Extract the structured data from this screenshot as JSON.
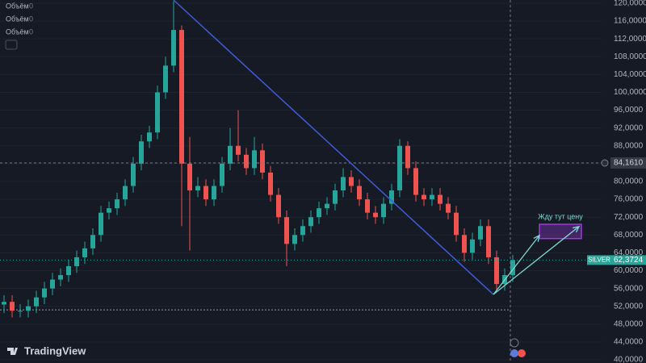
{
  "chart_data": {
    "type": "candlestick",
    "symbol": "SILVER",
    "up_color": "#26a69a",
    "down_color": "#ef5350",
    "open": [
      52.4,
      53,
      51,
      51,
      52,
      54,
      56,
      58,
      59,
      61,
      63,
      65,
      68,
      73,
      74,
      76,
      79,
      84,
      89,
      91,
      100,
      106,
      114,
      84,
      78,
      79,
      76,
      79,
      84,
      88,
      86,
      83,
      87,
      82,
      77,
      72,
      66,
      68,
      70,
      72,
      74,
      75,
      78,
      81,
      79,
      76,
      73,
      72,
      75,
      78,
      88,
      83,
      77,
      76,
      77,
      75,
      73,
      68,
      64,
      67,
      70,
      63,
      57,
      59
    ],
    "high": [
      54.5,
      54.5,
      52.5,
      53.5,
      55.5,
      57.5,
      59.5,
      60.5,
      62.5,
      64.5,
      66.5,
      69.5,
      74.5,
      75.5,
      77.5,
      80.5,
      85.5,
      90.5,
      92.5,
      101.5,
      108,
      120.5,
      115,
      90,
      81,
      80.5,
      80.5,
      85.5,
      92,
      96,
      87.5,
      90,
      88.5,
      83.5,
      78.5,
      73.5,
      69.5,
      71.5,
      73.5,
      75.5,
      76.5,
      79.5,
      83,
      82.5,
      80.5,
      77.5,
      74.5,
      76.5,
      79.5,
      89.5,
      89,
      84.5,
      78.5,
      78.5,
      78.5,
      76.5,
      74.5,
      69.5,
      68.5,
      71.5,
      71.5,
      64.5,
      60.5,
      63.5
    ],
    "low": [
      50.5,
      49.5,
      49.5,
      49.5,
      50.5,
      52.5,
      54.5,
      56.5,
      57.5,
      59.5,
      61.5,
      63.5,
      66.5,
      71.5,
      72.5,
      74.5,
      77.5,
      82.5,
      87.5,
      89.5,
      98.5,
      104.5,
      70,
      64.5,
      76.5,
      74.5,
      74.5,
      77.5,
      82.5,
      84.5,
      81.5,
      81.5,
      80.5,
      75.5,
      70.5,
      61,
      64.5,
      66.5,
      68.5,
      70.5,
      72.5,
      73.5,
      76.5,
      77.5,
      74.5,
      71.5,
      70.5,
      70.5,
      73.5,
      76.5,
      81.5,
      75.5,
      74.5,
      74.5,
      73.5,
      71.5,
      66.5,
      62,
      62.5,
      65.5,
      61.5,
      55.5,
      55.5,
      57.5
    ],
    "close": [
      53,
      51,
      51,
      52,
      54,
      56,
      58,
      59,
      61,
      63,
      65,
      68,
      73,
      74,
      76,
      79,
      84,
      89,
      91,
      100,
      106,
      114,
      84,
      78,
      79,
      76,
      79,
      84,
      88,
      86,
      83,
      87,
      82,
      77,
      72,
      66,
      68,
      70,
      72,
      74,
      75,
      78,
      81,
      79,
      76,
      73,
      72,
      75,
      78,
      88,
      83,
      77,
      76,
      77,
      75,
      73,
      68,
      64,
      67,
      70,
      63,
      57,
      59,
      62.3724
    ],
    "xlim": [
      -0.5,
      74
    ],
    "ylim": [
      39.28,
      120.72
    ],
    "yticks": [
      {
        "value": 40,
        "label": "40,0000"
      },
      {
        "value": 44,
        "label": "44,0000"
      },
      {
        "value": 48,
        "label": "48,0000"
      },
      {
        "value": 52,
        "label": "52,0000"
      },
      {
        "value": 56,
        "label": "56,0000"
      },
      {
        "value": 60,
        "label": "60,0000"
      },
      {
        "value": 64,
        "label": "64,0000"
      },
      {
        "value": 68,
        "label": "68,0000"
      },
      {
        "value": 72,
        "label": "72,0000"
      },
      {
        "value": 76,
        "label": "76,0000"
      },
      {
        "value": 80,
        "label": "80,0000"
      },
      {
        "value": 84,
        "label": "84,0000"
      },
      {
        "value": 88,
        "label": "88,0000"
      },
      {
        "value": 92,
        "label": "92,0000"
      },
      {
        "value": 96,
        "label": "96,0000"
      },
      {
        "value": 100,
        "label": "100,0000"
      },
      {
        "value": 104,
        "label": "104,0000"
      },
      {
        "value": 108,
        "label": "108,0000"
      },
      {
        "value": 112,
        "label": "112,0000"
      },
      {
        "value": 116,
        "label": "116,0000"
      },
      {
        "value": 120,
        "label": "120,0000"
      }
    ],
    "grid": true,
    "last_price": {
      "value": 62.3724,
      "label": "62,3724"
    },
    "crosshair": {
      "x": 62.7,
      "y": 84.161,
      "label": "84,1610"
    },
    "support_level": 51.2,
    "trendline": {
      "x": [
        21,
        60.6
      ],
      "y": [
        120.72,
        54.66
      ],
      "color": "#3f5bd8"
    },
    "arrows": [
      {
        "x": [
          60.6,
          66.3
        ],
        "y": [
          54.66,
          67.9
        ]
      },
      {
        "x": [
          60.6,
          71.2
        ],
        "y": [
          54.66,
          69.9
        ]
      }
    ],
    "arrow_color": "#7fd8d0",
    "target_zone": {
      "x": [
        66.3,
        71.5
      ],
      "y": [
        67.2,
        70.4
      ],
      "color": "#9c3bd6"
    },
    "annotation": "Жду тут цену"
  },
  "legend": [
    {
      "label": "Объём",
      "value": 0
    },
    {
      "label": "Объём",
      "value": 0
    },
    {
      "label": "Объём",
      "value": 0
    }
  ],
  "brand": "TradingView"
}
